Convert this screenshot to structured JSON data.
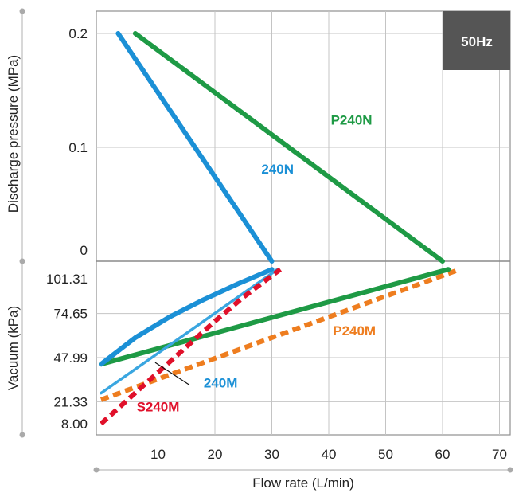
{
  "chart_data": {
    "type": "line",
    "badge": "50Hz",
    "xlabel": "Flow rate (L/min)",
    "ylabel_pressure": "Discharge pressure (MPa)",
    "ylabel_vacuum": "Vacuum (kPa)",
    "xlim": [
      0,
      72
    ],
    "x_ticks": [
      "10",
      "20",
      "30",
      "40",
      "50",
      "60",
      "70"
    ],
    "pressure_ticks": [
      "0.2",
      "0.1",
      "0"
    ],
    "vacuum_ticks": [
      "101.31",
      "74.65",
      "47.99",
      "21.33",
      "8.00"
    ],
    "grid": true,
    "series": [
      {
        "name": "240N",
        "region": "pressure",
        "color": "#1b90d6",
        "style": "solid",
        "x": [
          3,
          30
        ],
        "y": [
          0.2,
          0
        ]
      },
      {
        "name": "P240N",
        "region": "pressure",
        "color": "#1e9a45",
        "style": "solid",
        "x": [
          6,
          60
        ],
        "y": [
          0.2,
          0
        ]
      },
      {
        "name": "240N",
        "region": "vacuum",
        "color": "#1b90d6",
        "style": "solid",
        "x": [
          0,
          6,
          12,
          18,
          24,
          30
        ],
        "y": [
          44.0,
          60.0,
          72.5,
          83.0,
          92.5,
          101.31
        ]
      },
      {
        "name": "240M",
        "region": "vacuum",
        "color": "#3aa6e0",
        "style": "solid",
        "x": [
          0,
          31
        ],
        "y": [
          26.5,
          101.31
        ]
      },
      {
        "name": "P240N",
        "region": "vacuum",
        "color": "#1e9a45",
        "style": "solid",
        "x": [
          0,
          61
        ],
        "y": [
          44.0,
          101.31
        ]
      },
      {
        "name": "P240M",
        "region": "vacuum",
        "color": "#ee7d1f",
        "style": "dashed",
        "x": [
          0,
          63
        ],
        "y": [
          22.5,
          101.31
        ]
      },
      {
        "name": "S240M",
        "region": "vacuum",
        "color": "#e0102a",
        "style": "dashed",
        "x": [
          0,
          5,
          10,
          15,
          20,
          25,
          31.5
        ],
        "y": [
          8.0,
          23.5,
          39.0,
          54.5,
          70.0,
          84.5,
          101.31
        ]
      }
    ],
    "labels": [
      {
        "text": "240N",
        "color": "#1b90d6",
        "x": 31,
        "region": "pressure",
        "y": 0.077
      },
      {
        "text": "P240N",
        "color": "#1e9a45",
        "x": 44,
        "region": "pressure",
        "y": 0.12
      },
      {
        "text": "240M",
        "color": "#1b90d6",
        "x": 21,
        "region": "vacuum",
        "y": 30.0
      },
      {
        "text": "P240M",
        "color": "#ee7d1f",
        "x": 44.5,
        "region": "vacuum",
        "y": 61.5
      },
      {
        "text": "S240M",
        "color": "#e0102a",
        "x": 10,
        "region": "vacuum",
        "y": 15.5
      }
    ]
  }
}
